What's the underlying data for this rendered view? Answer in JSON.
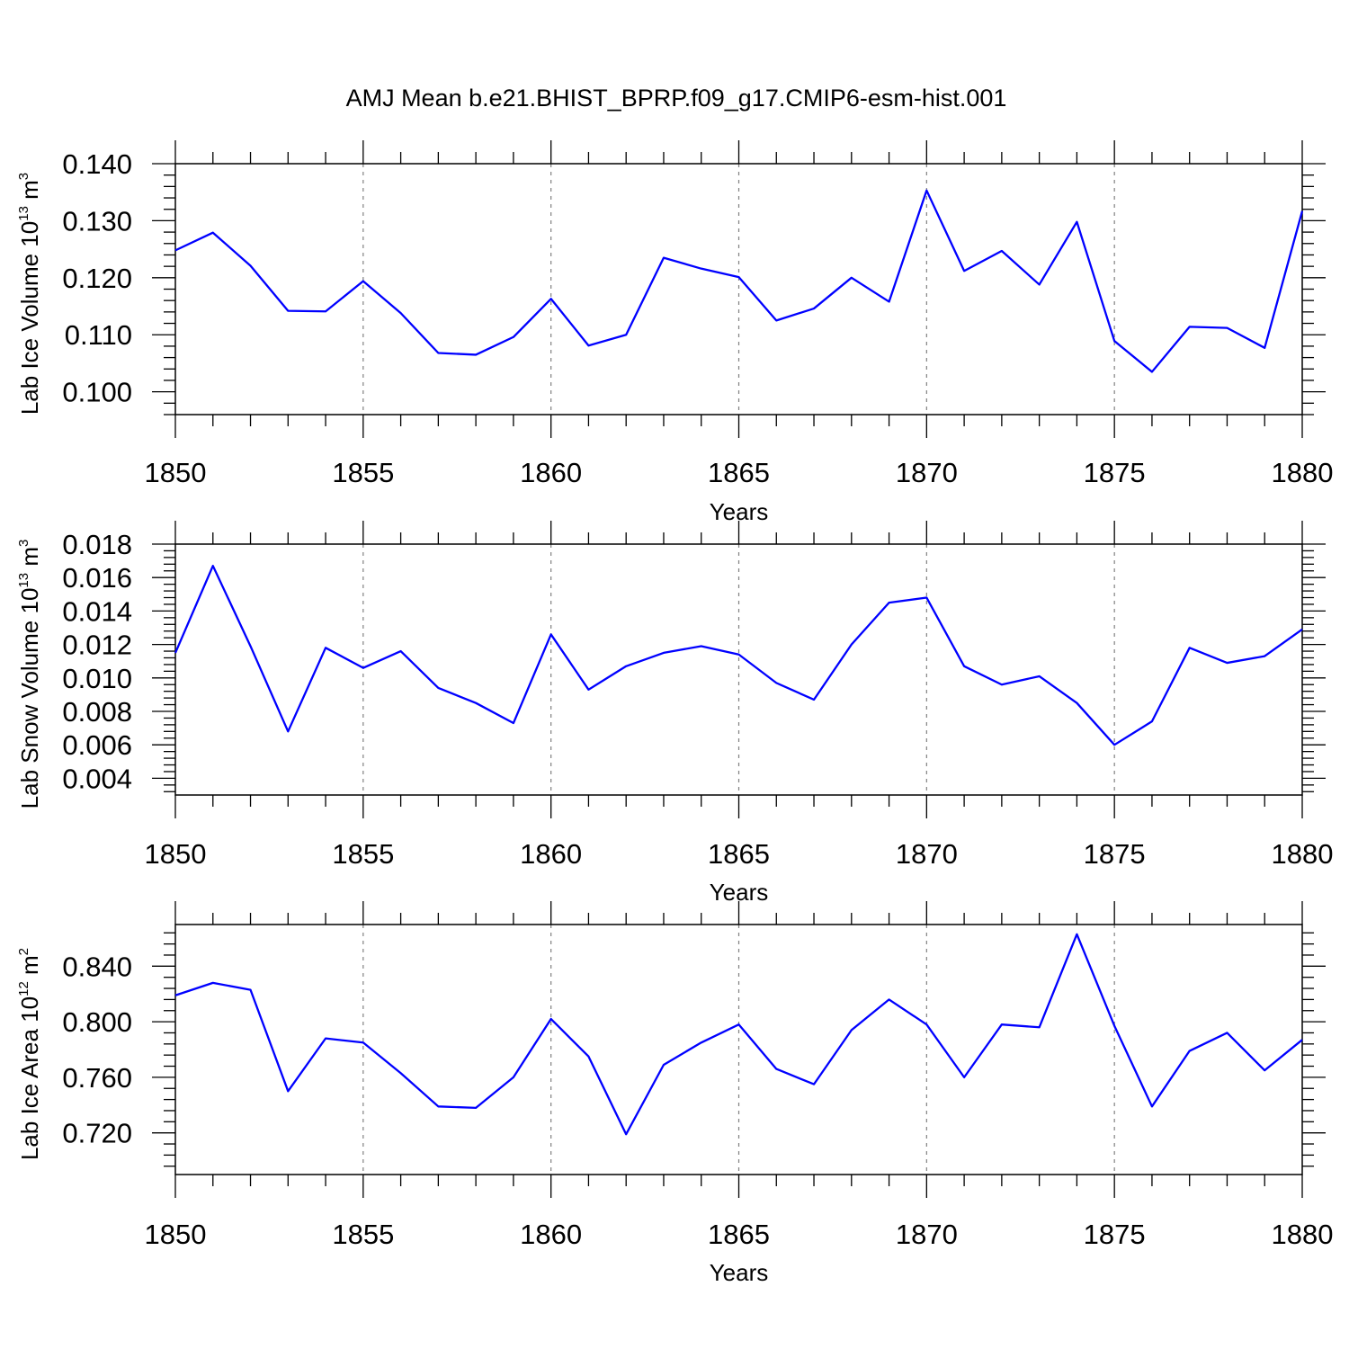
{
  "title": "AMJ Mean b.e21.BHIST_BPRP.f09_g17.CMIP6-esm-hist.001",
  "colors": {
    "line": "#0000ff",
    "axis": "#000000",
    "grid": "#808080"
  },
  "chart_data": [
    {
      "type": "line",
      "xlabel": "Years",
      "ylabel": {
        "text": "Lab Ice Volume 10",
        "exponent": "13",
        "unit": "m",
        "unit_exponent": "3"
      },
      "xlim": [
        1850,
        1880
      ],
      "ylim": [
        0.096,
        0.14
      ],
      "x_ticks": [
        "1850",
        "1855",
        "1860",
        "1865",
        "1870",
        "1875",
        "1880"
      ],
      "y_ticks": [
        "0.100",
        "0.110",
        "0.120",
        "0.130",
        "0.140"
      ],
      "grid": "vertical dashed at major x ticks",
      "x": [
        1850,
        1851,
        1852,
        1853,
        1854,
        1855,
        1856,
        1857,
        1858,
        1859,
        1860,
        1861,
        1862,
        1863,
        1864,
        1865,
        1866,
        1867,
        1868,
        1869,
        1870,
        1871,
        1872,
        1873,
        1874,
        1875,
        1876,
        1877,
        1878,
        1879,
        1880
      ],
      "series": [
        {
          "values": [
            0.1248,
            0.1279,
            0.1221,
            0.1142,
            0.1141,
            0.1194,
            0.1138,
            0.1068,
            0.1065,
            0.1096,
            0.1163,
            0.1081,
            0.11,
            0.1235,
            0.1216,
            0.1201,
            0.1125,
            0.1146,
            0.12,
            0.1158,
            0.1353,
            0.1212,
            0.1247,
            0.1188,
            0.1298,
            0.1089,
            0.1035,
            0.1114,
            0.1112,
            0.1077,
            0.1317
          ]
        }
      ]
    },
    {
      "type": "line",
      "xlabel": "Years",
      "ylabel": {
        "text": "Lab Snow Volume 10",
        "exponent": "13",
        "unit": "m",
        "unit_exponent": "3"
      },
      "xlim": [
        1850,
        1880
      ],
      "ylim": [
        0.003,
        0.018
      ],
      "x_ticks": [
        "1850",
        "1855",
        "1860",
        "1865",
        "1870",
        "1875",
        "1880"
      ],
      "y_ticks": [
        "0.004",
        "0.006",
        "0.008",
        "0.010",
        "0.012",
        "0.014",
        "0.016",
        "0.018"
      ],
      "grid": "vertical dashed at major x ticks",
      "x": [
        1850,
        1851,
        1852,
        1853,
        1854,
        1855,
        1856,
        1857,
        1858,
        1859,
        1860,
        1861,
        1862,
        1863,
        1864,
        1865,
        1866,
        1867,
        1868,
        1869,
        1870,
        1871,
        1872,
        1873,
        1874,
        1875,
        1876,
        1877,
        1878,
        1879,
        1880
      ],
      "series": [
        {
          "values": [
            0.0115,
            0.0167,
            0.0119,
            0.0068,
            0.0118,
            0.0106,
            0.0116,
            0.0094,
            0.0085,
            0.0073,
            0.0126,
            0.0093,
            0.0107,
            0.0115,
            0.0119,
            0.0114,
            0.0097,
            0.0087,
            0.012,
            0.0145,
            0.0148,
            0.0107,
            0.0096,
            0.0101,
            0.0085,
            0.006,
            0.0074,
            0.0118,
            0.0109,
            0.0113,
            0.0129
          ]
        }
      ]
    },
    {
      "type": "line",
      "xlabel": "Years",
      "ylabel": {
        "text": "Lab Ice Area 10",
        "exponent": "12",
        "unit": "m",
        "unit_exponent": "2"
      },
      "xlim": [
        1850,
        1880
      ],
      "ylim": [
        0.69,
        0.87
      ],
      "x_ticks": [
        "1850",
        "1855",
        "1860",
        "1865",
        "1870",
        "1875",
        "1880"
      ],
      "y_ticks": [
        "0.720",
        "0.760",
        "0.800",
        "0.840"
      ],
      "grid": "vertical dashed at major x ticks",
      "x": [
        1850,
        1851,
        1852,
        1853,
        1854,
        1855,
        1856,
        1857,
        1858,
        1859,
        1860,
        1861,
        1862,
        1863,
        1864,
        1865,
        1866,
        1867,
        1868,
        1869,
        1870,
        1871,
        1872,
        1873,
        1874,
        1875,
        1876,
        1877,
        1878,
        1879,
        1880
      ],
      "series": [
        {
          "values": [
            0.819,
            0.828,
            0.823,
            0.75,
            0.788,
            0.785,
            0.763,
            0.739,
            0.738,
            0.76,
            0.802,
            0.775,
            0.719,
            0.769,
            0.785,
            0.798,
            0.766,
            0.755,
            0.794,
            0.816,
            0.798,
            0.76,
            0.798,
            0.796,
            0.863,
            0.797,
            0.739,
            0.779,
            0.792,
            0.765,
            0.787
          ]
        }
      ]
    }
  ]
}
